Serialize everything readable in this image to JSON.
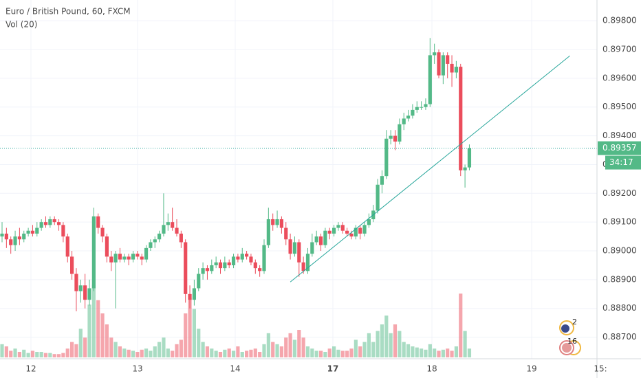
{
  "chart_data": {
    "type": "candlestick",
    "title": "Euro / British Pound, 60, FXCM",
    "subtitle": "Vol (20)",
    "up_color": "#53b987",
    "down_color": "#eb4d5c",
    "ylim": [
      0.88625,
      0.89872
    ],
    "yticks": [
      {
        "value": 0.898,
        "label": "0.89800"
      },
      {
        "value": 0.897,
        "label": "0.89700"
      },
      {
        "value": 0.896,
        "label": "0.89600"
      },
      {
        "value": 0.895,
        "label": "0.89500"
      },
      {
        "value": 0.894,
        "label": "0.89400"
      },
      {
        "value": 0.893,
        "label": "0.89300"
      },
      {
        "value": 0.892,
        "label": "0.89200"
      },
      {
        "value": 0.891,
        "label": "0.89100"
      },
      {
        "value": 0.89,
        "label": "0.89000"
      },
      {
        "value": 0.889,
        "label": "0.88900"
      },
      {
        "value": 0.888,
        "label": "0.88800"
      },
      {
        "value": 0.887,
        "label": "0.88700"
      }
    ],
    "xticks": [
      "12",
      "13",
      "14",
      "17",
      "18",
      "19",
      "15:"
    ],
    "grid": true,
    "last_price": {
      "value": 0.89357,
      "label": "0.89357"
    },
    "countdown": "34:17",
    "events": [
      "2",
      "16"
    ],
    "trendline": [
      [
        66,
        0.88892
      ],
      [
        130,
        0.89678
      ]
    ],
    "candles": [
      [
        0.8905,
        0.891,
        0.8903,
        0.8906
      ],
      [
        0.8906,
        0.8908,
        0.8901,
        0.8904
      ],
      [
        0.8904,
        0.8905,
        0.8899,
        0.8902
      ],
      [
        0.8902,
        0.8907,
        0.89,
        0.8905
      ],
      [
        0.8905,
        0.8908,
        0.8902,
        0.8904
      ],
      [
        0.8904,
        0.8907,
        0.8903,
        0.8906
      ],
      [
        0.8906,
        0.8908,
        0.8905,
        0.8907
      ],
      [
        0.8907,
        0.8909,
        0.8905,
        0.8906
      ],
      [
        0.8906,
        0.891,
        0.8905,
        0.8908
      ],
      [
        0.8908,
        0.8911,
        0.8907,
        0.891
      ],
      [
        0.891,
        0.8912,
        0.8908,
        0.8909
      ],
      [
        0.8909,
        0.8912,
        0.8908,
        0.8911
      ],
      [
        0.8911,
        0.8912,
        0.8909,
        0.891
      ],
      [
        0.891,
        0.8911,
        0.8907,
        0.8909
      ],
      [
        0.8909,
        0.891,
        0.8903,
        0.8905
      ],
      [
        0.8905,
        0.8906,
        0.8896,
        0.8898
      ],
      [
        0.8898,
        0.89,
        0.889,
        0.8892
      ],
      [
        0.8892,
        0.8894,
        0.8879,
        0.8886
      ],
      [
        0.8886,
        0.889,
        0.8882,
        0.8888
      ],
      [
        0.8888,
        0.8892,
        0.888,
        0.8883
      ],
      [
        0.8883,
        0.889,
        0.8881,
        0.8887
      ],
      [
        0.8887,
        0.8915,
        0.8886,
        0.8912
      ],
      [
        0.8912,
        0.8913,
        0.8906,
        0.8908
      ],
      [
        0.8908,
        0.8909,
        0.8903,
        0.8905
      ],
      [
        0.8905,
        0.8906,
        0.8896,
        0.8898
      ],
      [
        0.8898,
        0.89,
        0.8893,
        0.8896
      ],
      [
        0.8896,
        0.89,
        0.888,
        0.8899
      ],
      [
        0.8899,
        0.8901,
        0.8896,
        0.8897
      ],
      [
        0.8897,
        0.8899,
        0.8896,
        0.8898
      ],
      [
        0.8898,
        0.8899,
        0.8895,
        0.8897
      ],
      [
        0.8897,
        0.89,
        0.8896,
        0.8899
      ],
      [
        0.8899,
        0.89,
        0.8897,
        0.8898
      ],
      [
        0.8898,
        0.8899,
        0.8895,
        0.8897
      ],
      [
        0.8897,
        0.8902,
        0.8896,
        0.8901
      ],
      [
        0.8901,
        0.8904,
        0.89,
        0.8903
      ],
      [
        0.8903,
        0.8905,
        0.8901,
        0.8904
      ],
      [
        0.8904,
        0.8907,
        0.8903,
        0.8906
      ],
      [
        0.8906,
        0.892,
        0.8905,
        0.8909
      ],
      [
        0.8909,
        0.8913,
        0.8907,
        0.891
      ],
      [
        0.891,
        0.8915,
        0.8907,
        0.8908
      ],
      [
        0.8908,
        0.8911,
        0.8905,
        0.8906
      ],
      [
        0.8906,
        0.8907,
        0.8901,
        0.8903
      ],
      [
        0.8903,
        0.8904,
        0.8882,
        0.8885
      ],
      [
        0.8885,
        0.8888,
        0.888,
        0.8883
      ],
      [
        0.8883,
        0.889,
        0.8881,
        0.8887
      ],
      [
        0.8887,
        0.8894,
        0.8886,
        0.8892
      ],
      [
        0.8892,
        0.8896,
        0.889,
        0.8894
      ],
      [
        0.8894,
        0.8895,
        0.889,
        0.8893
      ],
      [
        0.8893,
        0.8897,
        0.8892,
        0.8895
      ],
      [
        0.8895,
        0.8898,
        0.8894,
        0.8896
      ],
      [
        0.8896,
        0.8897,
        0.8892,
        0.8894
      ],
      [
        0.8894,
        0.8898,
        0.8893,
        0.8896
      ],
      [
        0.8896,
        0.8897,
        0.8894,
        0.8895
      ],
      [
        0.8895,
        0.8899,
        0.8894,
        0.8898
      ],
      [
        0.8898,
        0.8899,
        0.8896,
        0.8897
      ],
      [
        0.8897,
        0.8901,
        0.8896,
        0.8899
      ],
      [
        0.8899,
        0.89,
        0.8897,
        0.8898
      ],
      [
        0.8898,
        0.8899,
        0.8895,
        0.8896
      ],
      [
        0.8896,
        0.8897,
        0.8892,
        0.8894
      ],
      [
        0.8894,
        0.8895,
        0.8891,
        0.8893
      ],
      [
        0.8893,
        0.8904,
        0.8892,
        0.8902
      ],
      [
        0.8902,
        0.8915,
        0.8901,
        0.8911
      ],
      [
        0.8911,
        0.8913,
        0.8907,
        0.8909
      ],
      [
        0.8909,
        0.8914,
        0.8908,
        0.8911
      ],
      [
        0.8911,
        0.8912,
        0.8906,
        0.8908
      ],
      [
        0.8908,
        0.891,
        0.8902,
        0.8904
      ],
      [
        0.8904,
        0.8906,
        0.8897,
        0.8899
      ],
      [
        0.8899,
        0.8905,
        0.8898,
        0.8903
      ],
      [
        0.8903,
        0.8904,
        0.8891,
        0.8896
      ],
      [
        0.8896,
        0.8898,
        0.8892,
        0.8893
      ],
      [
        0.8893,
        0.8901,
        0.8892,
        0.8899
      ],
      [
        0.8899,
        0.8906,
        0.8898,
        0.8903
      ],
      [
        0.8903,
        0.8907,
        0.8902,
        0.8905
      ],
      [
        0.8905,
        0.8906,
        0.89,
        0.8902
      ],
      [
        0.8902,
        0.8908,
        0.8901,
        0.8907
      ],
      [
        0.8907,
        0.8908,
        0.8904,
        0.8906
      ],
      [
        0.8906,
        0.8909,
        0.8905,
        0.8908
      ],
      [
        0.8908,
        0.891,
        0.8907,
        0.8909
      ],
      [
        0.8909,
        0.891,
        0.8906,
        0.8907
      ],
      [
        0.8907,
        0.8908,
        0.8905,
        0.8906
      ],
      [
        0.8906,
        0.8907,
        0.8904,
        0.8905
      ],
      [
        0.8905,
        0.8909,
        0.8904,
        0.8908
      ],
      [
        0.8908,
        0.8909,
        0.8904,
        0.8906
      ],
      [
        0.8906,
        0.891,
        0.8905,
        0.8909
      ],
      [
        0.8909,
        0.8913,
        0.8908,
        0.8911
      ],
      [
        0.8911,
        0.8916,
        0.891,
        0.8914
      ],
      [
        0.8914,
        0.8925,
        0.8913,
        0.8923
      ],
      [
        0.8923,
        0.8928,
        0.892,
        0.8926
      ],
      [
        0.8926,
        0.8942,
        0.8925,
        0.8939
      ],
      [
        0.8939,
        0.8942,
        0.8937,
        0.894
      ],
      [
        0.894,
        0.8942,
        0.8935,
        0.8938
      ],
      [
        0.8938,
        0.8946,
        0.8937,
        0.8944
      ],
      [
        0.8944,
        0.8948,
        0.8942,
        0.8946
      ],
      [
        0.8946,
        0.8949,
        0.8945,
        0.8947
      ],
      [
        0.8947,
        0.8951,
        0.8946,
        0.8949
      ],
      [
        0.8949,
        0.8952,
        0.8948,
        0.895
      ],
      [
        0.895,
        0.8952,
        0.8949,
        0.895
      ],
      [
        0.895,
        0.8953,
        0.8949,
        0.8951
      ],
      [
        0.8951,
        0.8974,
        0.895,
        0.8968
      ],
      [
        0.8968,
        0.8972,
        0.8965,
        0.8969
      ],
      [
        0.8969,
        0.897,
        0.896,
        0.8961
      ],
      [
        0.8961,
        0.8969,
        0.8958,
        0.8968
      ],
      [
        0.8968,
        0.8969,
        0.896,
        0.8965
      ],
      [
        0.8965,
        0.8968,
        0.8957,
        0.8962
      ],
      [
        0.8962,
        0.8966,
        0.896,
        0.8964
      ],
      [
        0.8964,
        0.8965,
        0.8926,
        0.8928
      ],
      [
        0.8928,
        0.893,
        0.8922,
        0.8929
      ],
      [
        0.8929,
        0.8937,
        0.8928,
        0.89357
      ]
    ],
    "volume": [
      12,
      10,
      6,
      8,
      5,
      7,
      4,
      6,
      5,
      5,
      4,
      4,
      3,
      3,
      4,
      8,
      14,
      12,
      26,
      18,
      48,
      66,
      52,
      40,
      30,
      18,
      14,
      10,
      8,
      7,
      6,
      5,
      7,
      8,
      6,
      10,
      14,
      18,
      8,
      6,
      12,
      16,
      40,
      54,
      44,
      26,
      14,
      10,
      8,
      6,
      5,
      7,
      8,
      6,
      10,
      5,
      6,
      7,
      8,
      5,
      12,
      22,
      14,
      12,
      10,
      18,
      22,
      16,
      25,
      18,
      10,
      8,
      6,
      6,
      5,
      8,
      10,
      7,
      6,
      6,
      8,
      16,
      10,
      14,
      22,
      14,
      24,
      30,
      38,
      22,
      30,
      24,
      14,
      12,
      10,
      9,
      8,
      7,
      12,
      8,
      6,
      7,
      8,
      6,
      10,
      58,
      24,
      8
    ]
  }
}
